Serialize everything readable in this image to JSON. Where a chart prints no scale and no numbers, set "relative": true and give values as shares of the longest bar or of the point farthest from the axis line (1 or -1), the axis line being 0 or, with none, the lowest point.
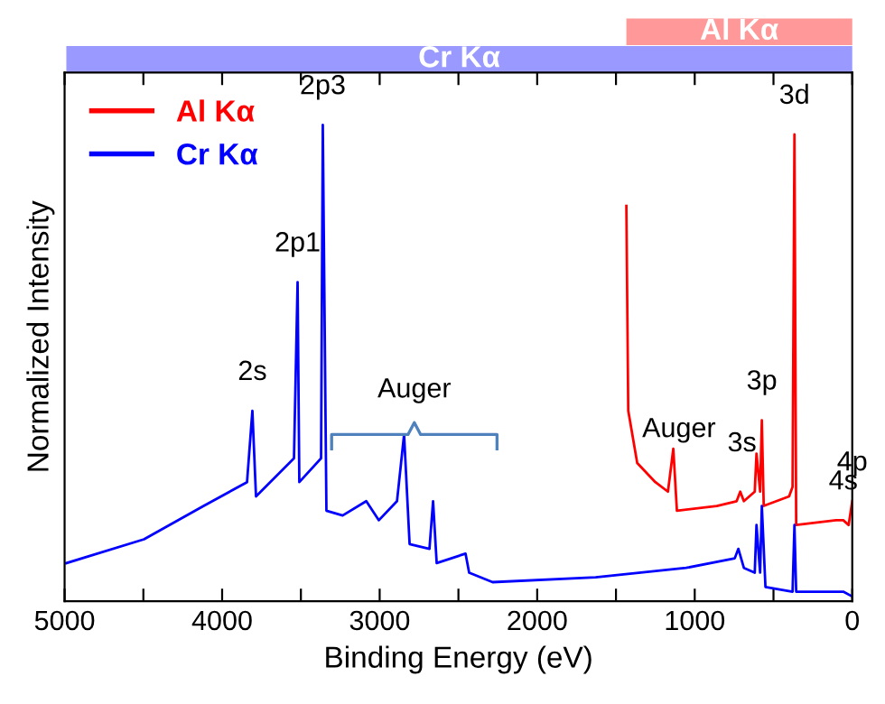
{
  "chart_data": {
    "type": "line",
    "relative": true,
    "xlabel": "Binding Energy (eV)",
    "ylabel": "Normalized Intensity",
    "xlim": [
      5000,
      0
    ],
    "xticks": [
      5000,
      {
        "value": 4500,
        "label": null
      },
      4000,
      {
        "value": 3500,
        "label": null
      },
      3000,
      {
        "value": 2500,
        "label": null
      },
      2000,
      {
        "value": 1500,
        "label": null
      },
      1000,
      {
        "value": 500,
        "label": null
      },
      0
    ],
    "legend": "top left",
    "grid": false,
    "series": [
      {
        "name": "Al Kα",
        "color": "#ff0000",
        "x": [
          1434,
          1422,
          1365,
          1250,
          1170,
          1136,
          1113,
          860,
          734,
          711,
          688,
          619,
          608,
          585,
          574,
          562,
          401,
          379,
          367,
          356,
          103,
          57,
          23,
          0
        ],
        "values": [
          0.83,
          0.4,
          0.29,
          0.25,
          0.23,
          0.32,
          0.19,
          0.2,
          0.21,
          0.23,
          0.21,
          0.23,
          0.31,
          0.23,
          0.38,
          0.2,
          0.22,
          0.24,
          0.98,
          0.16,
          0.17,
          0.17,
          0.16,
          0.21
        ]
      },
      {
        "name": "Cr Kα",
        "color": "#0000ff",
        "x": [
          4989,
          4496,
          4117,
          3842,
          3808,
          3785,
          3544,
          3521,
          3510,
          3372,
          3361,
          3338,
          3235,
          3085,
          3005,
          2890,
          2845,
          2810,
          2684,
          2661,
          2638,
          2455,
          2432,
          2283,
          1629,
          1055,
          746,
          723,
          688,
          619,
          608,
          585,
          574,
          551,
          379,
          367,
          356,
          103,
          57,
          0
        ],
        "values": [
          0.08,
          0.13,
          0.2,
          0.25,
          0.4,
          0.22,
          0.3,
          0.67,
          0.25,
          0.3,
          1.0,
          0.19,
          0.18,
          0.21,
          0.17,
          0.21,
          0.35,
          0.12,
          0.11,
          0.21,
          0.08,
          0.1,
          0.06,
          0.04,
          0.05,
          0.07,
          0.09,
          0.11,
          0.07,
          0.06,
          0.16,
          0.06,
          0.2,
          0.03,
          0.02,
          0.16,
          0.02,
          0.02,
          0.02,
          0.01
        ]
      }
    ],
    "annotations": [
      {
        "text": "2s",
        "x": 3808,
        "y": 0.4
      },
      {
        "text": "2p1",
        "x": 3521,
        "y": 0.67
      },
      {
        "text": "2p3",
        "x": 3361,
        "y": 1.0
      },
      {
        "text": "Auger",
        "x": 2780,
        "y": 0.3
      },
      {
        "text": "Auger",
        "x": 1100,
        "y": 0.28
      },
      {
        "text": "3s",
        "x": 700,
        "y": 0.25
      },
      {
        "text": "3p",
        "x": 574,
        "y": 0.38
      },
      {
        "text": "3d",
        "x": 367,
        "y": 0.98
      },
      {
        "text": "4s",
        "x": 57,
        "y": 0.17
      },
      {
        "text": "4p",
        "x": 0,
        "y": 0.21
      }
    ]
  }
}
